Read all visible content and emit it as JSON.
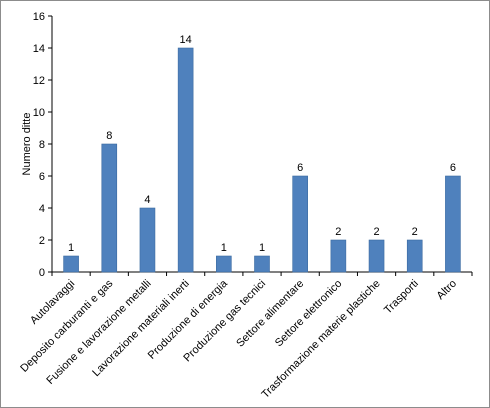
{
  "chart_data": {
    "type": "bar",
    "title": "",
    "xlabel": "",
    "ylabel": "Numero ditte",
    "ylim": [
      0,
      16
    ],
    "yticks": [
      0,
      2,
      4,
      6,
      8,
      10,
      12,
      14,
      16
    ],
    "grid": false,
    "legend": "none",
    "bar_color": "#4f81bd",
    "categories": [
      "Autolavaggi",
      "Deposito carburanti e gas",
      "Fusione e lavorazione metalli",
      "Lavorazione materiali inerti",
      "Produzione di energia",
      "Produzione gas tecnici",
      "Settore alimentare",
      "Settore elettronico",
      "Trasformazione materie plastiche",
      "Trasporti",
      "Altro"
    ],
    "values": [
      1,
      8,
      4,
      14,
      1,
      1,
      6,
      2,
      2,
      2,
      6
    ]
  }
}
